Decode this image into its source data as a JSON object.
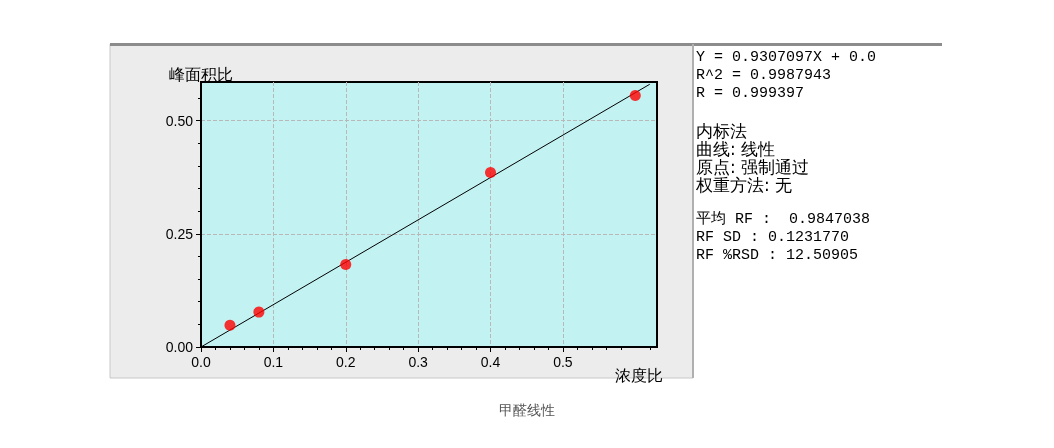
{
  "chart_data": {
    "type": "scatter",
    "xlabel": "浓度比",
    "ylabel": "峰面积比",
    "xlim": [
      0,
      0.63
    ],
    "ylim": [
      0,
      0.585
    ],
    "xticks": [
      {
        "value": 0,
        "label": "0.0"
      },
      0.1,
      0.2,
      0.3,
      0.4,
      0.5
    ],
    "yticks": [
      {
        "value": 0,
        "label": "0.00"
      },
      {
        "value": 0.25,
        "label": "0.25"
      },
      {
        "value": 0.5,
        "label": "0.50"
      }
    ],
    "grid": true,
    "series": [
      {
        "marker": "circle",
        "color": "#ff0000",
        "x": [
          0.04,
          0.08,
          0.2,
          0.4,
          0.6
        ],
        "values": [
          0.048,
          0.077,
          0.182,
          0.385,
          0.555
        ]
      },
      {
        "type": "line",
        "marker": "none",
        "color": "#000000",
        "x": [
          0,
          0.62
        ],
        "values": [
          0,
          0.58
        ]
      }
    ],
    "annotations": [
      "Y = 0.9307097X + 0.0",
      "R^2 = 0.9987943",
      "R = 0.999397",
      "内标法",
      "曲线: 线性",
      "原点: 强制通过",
      "权重方法: 无",
      "平均 RF :  0.9847038",
      "RF SD : 0.1231770",
      "RF %RSD : 12.50905",
      "甲醛线性"
    ]
  }
}
